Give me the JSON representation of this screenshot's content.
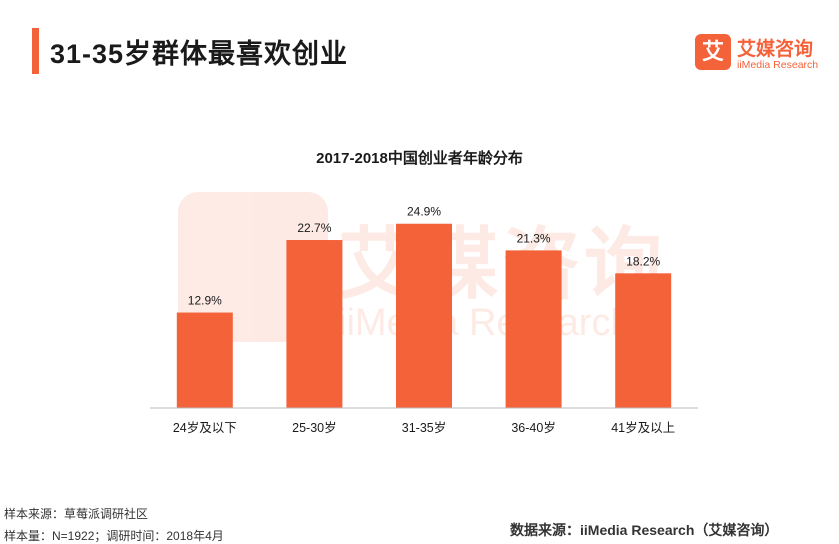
{
  "page": {
    "title": "31-35岁群体最喜欢创业"
  },
  "logo": {
    "mark": "艾",
    "name": "艾媒咨询",
    "sub": "iiMedia Research"
  },
  "watermark": {
    "name": "艾媒咨询",
    "sub": "iiMedia Research"
  },
  "footer": {
    "source": "样本来源：草莓派调研社区",
    "sample": "样本量：N=1922；调研时间：2018年4月",
    "data_source": "数据来源：iiMedia Research（艾媒咨询）"
  },
  "colors": {
    "accent": "#f4623a",
    "axis": "#bbbbbb"
  },
  "chart_data": {
    "type": "bar",
    "title": "2017-2018中国创业者年龄分布",
    "categories": [
      "24岁及以下",
      "25-30岁",
      "31-35岁",
      "36-40岁",
      "41岁及以上"
    ],
    "values": [
      12.9,
      22.7,
      24.9,
      21.3,
      18.2
    ],
    "value_labels": [
      "12.9%",
      "22.7%",
      "24.9%",
      "21.3%",
      "18.2%"
    ],
    "unit": "%",
    "ylim": [
      0,
      30
    ],
    "grid": false,
    "legend": "none"
  }
}
